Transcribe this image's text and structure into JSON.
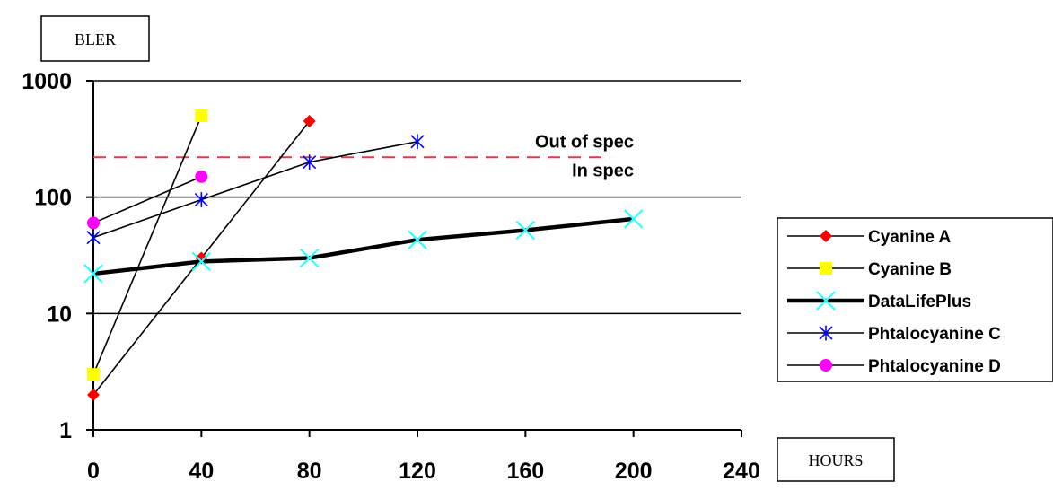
{
  "chart_data": {
    "type": "line",
    "y_scale": "log",
    "ylabel": "BLER",
    "xlabel": "HOURS",
    "xlim": [
      0,
      240
    ],
    "ylim": [
      1,
      1000
    ],
    "x_ticks": [
      "0",
      "40",
      "80",
      "120",
      "160",
      "200",
      "240"
    ],
    "y_ticks": [
      "1",
      "10",
      "100",
      "1000"
    ],
    "grid": "horizontal major gridlines",
    "legend_position": "right",
    "threshold": {
      "value": 220,
      "color": "#e8374a",
      "label_above": "Out of spec",
      "label_below": "In spec"
    },
    "series": [
      {
        "name": "Cyanine A",
        "color": "#ff0000",
        "marker": "diamond",
        "points": [
          [
            0,
            2
          ],
          [
            40,
            30
          ],
          [
            80,
            450
          ]
        ]
      },
      {
        "name": "Cyanine B",
        "color": "#ffff00",
        "marker": "square",
        "points": [
          [
            0,
            3
          ],
          [
            40,
            500
          ]
        ]
      },
      {
        "name": "DataLifePlus",
        "color": "#33ffff",
        "marker": "x",
        "bold_line": true,
        "points": [
          [
            0,
            22
          ],
          [
            40,
            28
          ],
          [
            80,
            30
          ],
          [
            120,
            43
          ],
          [
            160,
            52
          ],
          [
            200,
            65
          ]
        ]
      },
      {
        "name": "Phtalocyanine C",
        "color": "#0000ff",
        "marker": "asterisk",
        "points": [
          [
            0,
            45
          ],
          [
            40,
            95
          ],
          [
            80,
            200
          ],
          [
            120,
            300
          ]
        ]
      },
      {
        "name": "Phtalocyanine D",
        "color": "#ff00ff",
        "marker": "circle",
        "points": [
          [
            0,
            60
          ],
          [
            40,
            150
          ]
        ]
      }
    ]
  }
}
